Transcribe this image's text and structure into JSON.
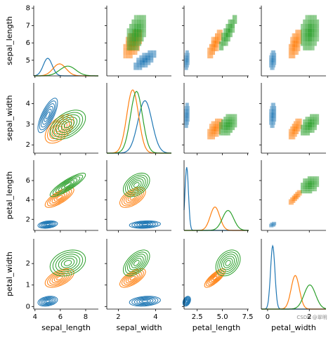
{
  "chart_data": {
    "type": "pairplot",
    "variables": [
      {
        "label": "sepal_length",
        "xlim": [
          3.9,
          9.0
        ],
        "xticks": [
          4,
          6,
          8
        ],
        "ylim": [
          4.1,
          8.15
        ],
        "yticks": [
          5,
          6,
          7,
          8
        ]
      },
      {
        "label": "sepal_width",
        "xlim": [
          1.38,
          4.85
        ],
        "xticks": [
          2,
          4
        ],
        "ylim": [
          1.6,
          5.0
        ],
        "yticks": [
          2,
          3,
          4
        ]
      },
      {
        "label": "petal_length",
        "xlim": [
          1.2,
          7.6
        ],
        "xticks": [
          2.5,
          {
            "value": 5,
            "label": "5.0"
          },
          7.5
        ],
        "ylim": [
          0.86,
          8.1
        ],
        "yticks": [
          2,
          4,
          6
        ]
      },
      {
        "label": "petal_width",
        "xlim": [
          -0.3,
          2.8
        ],
        "xticks": [
          0,
          2
        ],
        "ylim": [
          -0.12,
          3.15
        ],
        "yticks": [
          0,
          1,
          2
        ]
      }
    ],
    "series": [
      {
        "color": "#1f77b4",
        "mean": [
          5.006,
          3.428,
          1.462,
          0.246
        ],
        "sd": [
          0.352,
          0.379,
          0.174,
          0.105
        ],
        "corr": [
          [
            1,
            0.74,
            0.27,
            0.28
          ],
          [
            0.74,
            1,
            0.18,
            0.23
          ],
          [
            0.27,
            0.18,
            1,
            0.33
          ],
          [
            0.28,
            0.23,
            0.33,
            1
          ]
        ]
      },
      {
        "color": "#ff7f0e",
        "mean": [
          5.936,
          2.77,
          4.26,
          1.326
        ],
        "sd": [
          0.516,
          0.314,
          0.47,
          0.198
        ],
        "corr": [
          [
            1,
            0.53,
            0.75,
            0.55
          ],
          [
            0.53,
            1,
            0.56,
            0.66
          ],
          [
            0.75,
            0.56,
            1,
            0.79
          ],
          [
            0.55,
            0.66,
            0.79,
            1
          ]
        ]
      },
      {
        "color": "#2ca02c",
        "mean": [
          6.588,
          2.974,
          5.552,
          2.026
        ],
        "sd": [
          0.636,
          0.322,
          0.552,
          0.275
        ],
        "corr": [
          [
            1,
            0.46,
            0.86,
            0.28
          ],
          [
            0.46,
            1,
            0.4,
            0.54
          ],
          [
            0.86,
            0.4,
            1,
            0.32
          ],
          [
            0.28,
            0.54,
            0.32,
            1
          ]
        ]
      }
    ],
    "watermark": "CSDN @翠明"
  }
}
